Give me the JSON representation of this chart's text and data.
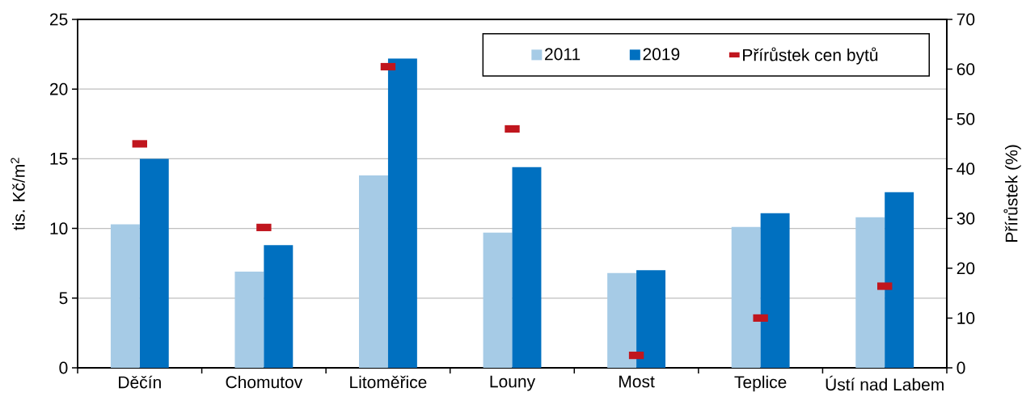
{
  "chart_data": {
    "type": "bar",
    "categories": [
      "Děčín",
      "Chomutov",
      "Litoměřice",
      "Louny",
      "Most",
      "Teplice",
      "Ústí nad Labem"
    ],
    "ylabel": "tis. Kč/m$^{2}$",
    "y2label": "Přírůstek (%)",
    "series": [
      {
        "name": "2011",
        "color": "#a6cbe6",
        "values": [
          10.3,
          6.9,
          13.8,
          9.7,
          6.8,
          10.1,
          10.8
        ]
      },
      {
        "name": "2019",
        "color": "#0070c0",
        "values": [
          15.0,
          8.8,
          22.2,
          14.4,
          7.0,
          11.1,
          12.6
        ]
      },
      {
        "name": "Přírůstek cen bytů",
        "type": "scatter",
        "axis": "y2",
        "color": "#c0161e",
        "values": [
          45.0,
          28.2,
          60.5,
          48.0,
          2.5,
          10.0,
          16.4
        ]
      }
    ],
    "ylim": [
      0,
      25
    ],
    "yticks": [
      0,
      5,
      10,
      15,
      20,
      25
    ],
    "y2lim": [
      0,
      70
    ],
    "y2ticks": [
      0,
      10,
      20,
      30,
      40,
      50,
      60,
      70
    ],
    "grid": "y",
    "legend": "top right"
  }
}
